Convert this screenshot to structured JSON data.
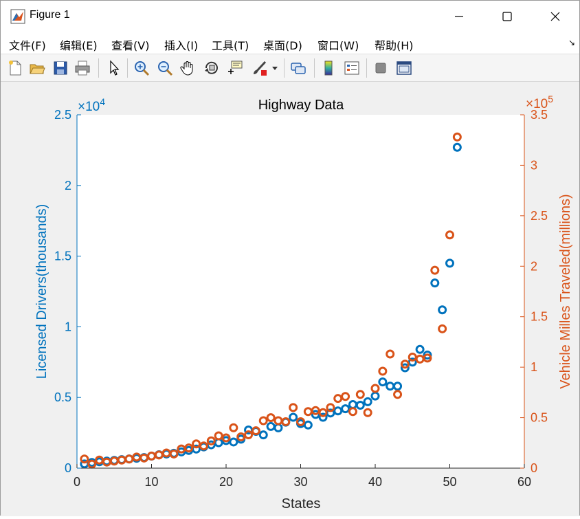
{
  "window": {
    "title": "Figure 1",
    "controls": {
      "minimize": "minimize",
      "maximize": "maximize",
      "close": "close"
    }
  },
  "menu": {
    "items": [
      "文件(F)",
      "编辑(E)",
      "查看(V)",
      "插入(I)",
      "工具(T)",
      "桌面(D)",
      "窗口(W)",
      "帮助(H)"
    ]
  },
  "toolbar": {
    "icons": [
      "new-figure-icon",
      "open-file-icon",
      "save-icon",
      "print-icon",
      "pointer-icon",
      "zoom-in-icon",
      "zoom-out-icon",
      "pan-icon",
      "rotate-3d-icon",
      "data-cursor-icon",
      "brush-icon",
      "brush-dropdown-icon",
      "link-plot-icon",
      "insert-colorbar-icon",
      "insert-legend-icon",
      "hide-plot-tools-icon",
      "show-plot-tools-icon"
    ]
  },
  "colors": {
    "left": "#0072BD",
    "right": "#D95319"
  },
  "chart_data": {
    "type": "scatter",
    "title": "Highway Data",
    "xlabel": "States",
    "ylabel_left": "Licensed Drivers(thousands)",
    "ylabel_right": "Vehicle Milles Traveled(millions)",
    "xlim": [
      0,
      60
    ],
    "ylim_left": [
      0,
      25000
    ],
    "ylim_right": [
      0,
      350000
    ],
    "exponent_left": "×10",
    "exponent_left_power": "4",
    "exponent_right": "×10",
    "exponent_right_power": "5",
    "xticks": [
      0,
      10,
      20,
      30,
      40,
      50,
      60
    ],
    "xtick_labels": [
      "0",
      "10",
      "20",
      "30",
      "40",
      "50",
      "60"
    ],
    "yticks_left": [
      0,
      5000,
      10000,
      15000,
      20000,
      25000
    ],
    "ytick_labels_left": [
      "0",
      "0.5",
      "1",
      "1.5",
      "2",
      "2.5"
    ],
    "yticks_right": [
      0,
      50000,
      100000,
      150000,
      200000,
      250000,
      300000,
      350000
    ],
    "ytick_labels_right": [
      "0",
      "0.5",
      "1",
      "1.5",
      "2",
      "2.5",
      "3",
      "3.5"
    ],
    "grid": false,
    "series": [
      {
        "axis": "left",
        "values": [
          300,
          400,
          450,
          500,
          550,
          600,
          650,
          700,
          750,
          850,
          950,
          1000,
          1050,
          1150,
          1250,
          1350,
          1500,
          1650,
          1800,
          1950,
          1850,
          2050,
          2700,
          2600,
          2350,
          2950,
          2850,
          3250,
          3600,
          3150,
          3050,
          3800,
          3600,
          3900,
          4050,
          4200,
          4500,
          4450,
          4700,
          5100,
          6100,
          5800,
          5800,
          7100,
          7500,
          8400,
          8000,
          13100,
          11200,
          14500,
          22700
        ]
      },
      {
        "axis": "right",
        "values": [
          9000,
          4000,
          8000,
          6000,
          7000,
          8000,
          9000,
          11000,
          10000,
          12000,
          13000,
          15000,
          14000,
          19000,
          20000,
          24000,
          22000,
          27000,
          32000,
          30000,
          40000,
          31000,
          33000,
          37000,
          47000,
          50000,
          47000,
          46000,
          60000,
          46000,
          56000,
          57000,
          55000,
          60000,
          69000,
          71000,
          56000,
          73000,
          55000,
          79000,
          96000,
          113000,
          73000,
          103000,
          110000,
          108000,
          109000,
          196000,
          138000,
          231000,
          328000
        ]
      }
    ]
  }
}
